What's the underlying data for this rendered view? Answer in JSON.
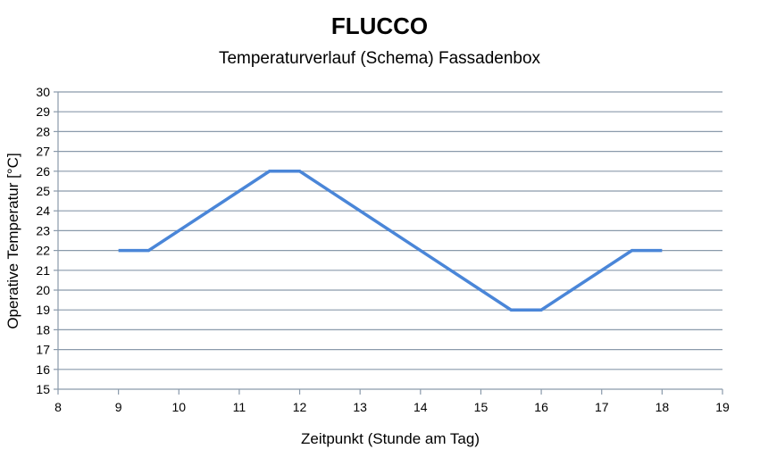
{
  "chart_data": {
    "type": "line",
    "title": "FLUCCO",
    "subtitle": "Temperaturverlauf  (Schema)  Fassadenbox",
    "xlabel": "Zeitpunkt (Stunde am Tag)",
    "ylabel": "Operative Temperatur [°C]",
    "xlim": [
      8,
      19
    ],
    "ylim": [
      15,
      30
    ],
    "xticks": [
      "8",
      "9",
      "10",
      "11",
      "12",
      "13",
      "14",
      "15",
      "16",
      "17",
      "18",
      "19"
    ],
    "yticks": [
      "15",
      "16",
      "17",
      "18",
      "19",
      "20",
      "21",
      "22",
      "23",
      "24",
      "25",
      "26",
      "27",
      "28",
      "29",
      "30"
    ],
    "grid": "horizontal",
    "legend": "none",
    "series": [
      {
        "x": [
          9,
          9.5,
          11.5,
          12,
          15.5,
          16,
          17.5,
          18
        ],
        "y": [
          22,
          22,
          26,
          26,
          19,
          19,
          22,
          22
        ],
        "color": "#4a86d8"
      }
    ],
    "colors": {
      "grid": "#8a9aab",
      "axis": "#8a9aab"
    }
  }
}
